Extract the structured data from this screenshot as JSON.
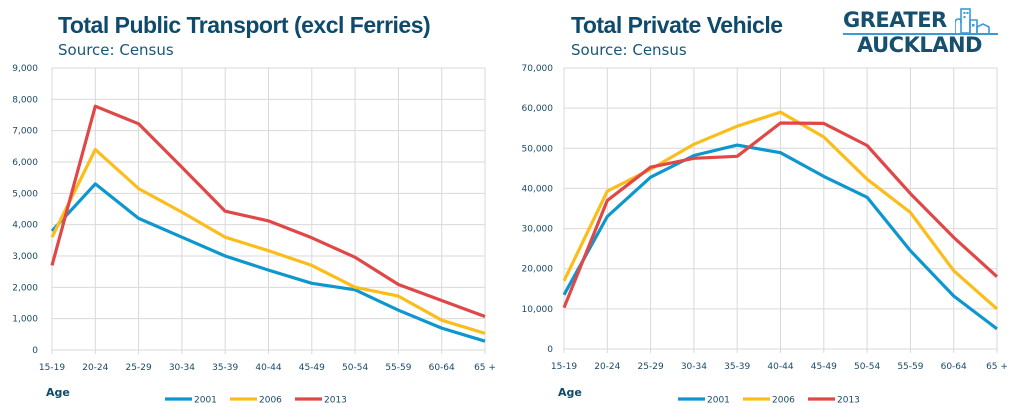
{
  "logo": {
    "line1": "GREATER",
    "line2": "AUCKLAND",
    "icon": "city-buildings-icon"
  },
  "colors": {
    "2001": "#0e97cf",
    "2006": "#fbbd1a",
    "2013": "#e04848",
    "grid": "#d9d9d9",
    "text": "#0d4a6b"
  },
  "chart_data": [
    {
      "type": "line",
      "title": "Total Public Transport (excl Ferries)",
      "subtitle": "Source: Census",
      "xlabel": "Age",
      "ylabel": "",
      "categories": [
        "15-19",
        "20-24",
        "25-29",
        "30-34",
        "35-39",
        "40-44",
        "45-49",
        "50-54",
        "55-59",
        "60-64",
        "65 +"
      ],
      "ylim": [
        0,
        9000
      ],
      "yticks": [
        0,
        1000,
        2000,
        3000,
        4000,
        5000,
        6000,
        7000,
        8000,
        9000
      ],
      "ytick_labels": [
        "0",
        "1,000",
        "2,000",
        "3,000",
        "4,000",
        "5,000",
        "6,000",
        "7,000",
        "8,000",
        "9,000"
      ],
      "grid": true,
      "legend_position": "bottom",
      "series": [
        {
          "name": "2001",
          "values": [
            3800,
            5300,
            4200,
            3600,
            3000,
            2550,
            2130,
            1920,
            1270,
            700,
            280
          ]
        },
        {
          "name": "2006",
          "values": [
            3600,
            6400,
            5150,
            4400,
            3600,
            3170,
            2700,
            2000,
            1720,
            950,
            530
          ]
        },
        {
          "name": "2013",
          "values": [
            2700,
            7780,
            7220,
            5830,
            4430,
            4120,
            3580,
            2960,
            2090,
            1580,
            1070
          ]
        }
      ]
    },
    {
      "type": "line",
      "title": "Total Private Vehicle",
      "subtitle": "Source: Census",
      "xlabel": "Age",
      "ylabel": "",
      "categories": [
        "15-19",
        "20-24",
        "25-29",
        "30-34",
        "35-39",
        "40-44",
        "45-49",
        "50-54",
        "55-59",
        "60-64",
        "65 +"
      ],
      "ylim": [
        0,
        70000
      ],
      "yticks": [
        0,
        10000,
        20000,
        30000,
        40000,
        50000,
        60000,
        70000
      ],
      "ytick_labels": [
        "0",
        "10,000",
        "20,000",
        "30,000",
        "40,000",
        "50,000",
        "60,000",
        "70,000"
      ],
      "grid": true,
      "legend_position": "bottom",
      "series": [
        {
          "name": "2001",
          "values": [
            13500,
            33000,
            42800,
            48200,
            50800,
            48900,
            43000,
            37800,
            24500,
            13200,
            5000
          ]
        },
        {
          "name": "2006",
          "values": [
            17000,
            39300,
            44800,
            51000,
            55500,
            59000,
            52800,
            42300,
            34000,
            19500,
            10000
          ]
        },
        {
          "name": "2013",
          "values": [
            10300,
            37000,
            45300,
            47500,
            48000,
            56300,
            56200,
            50700,
            38700,
            27800,
            18000
          ]
        }
      ]
    }
  ]
}
